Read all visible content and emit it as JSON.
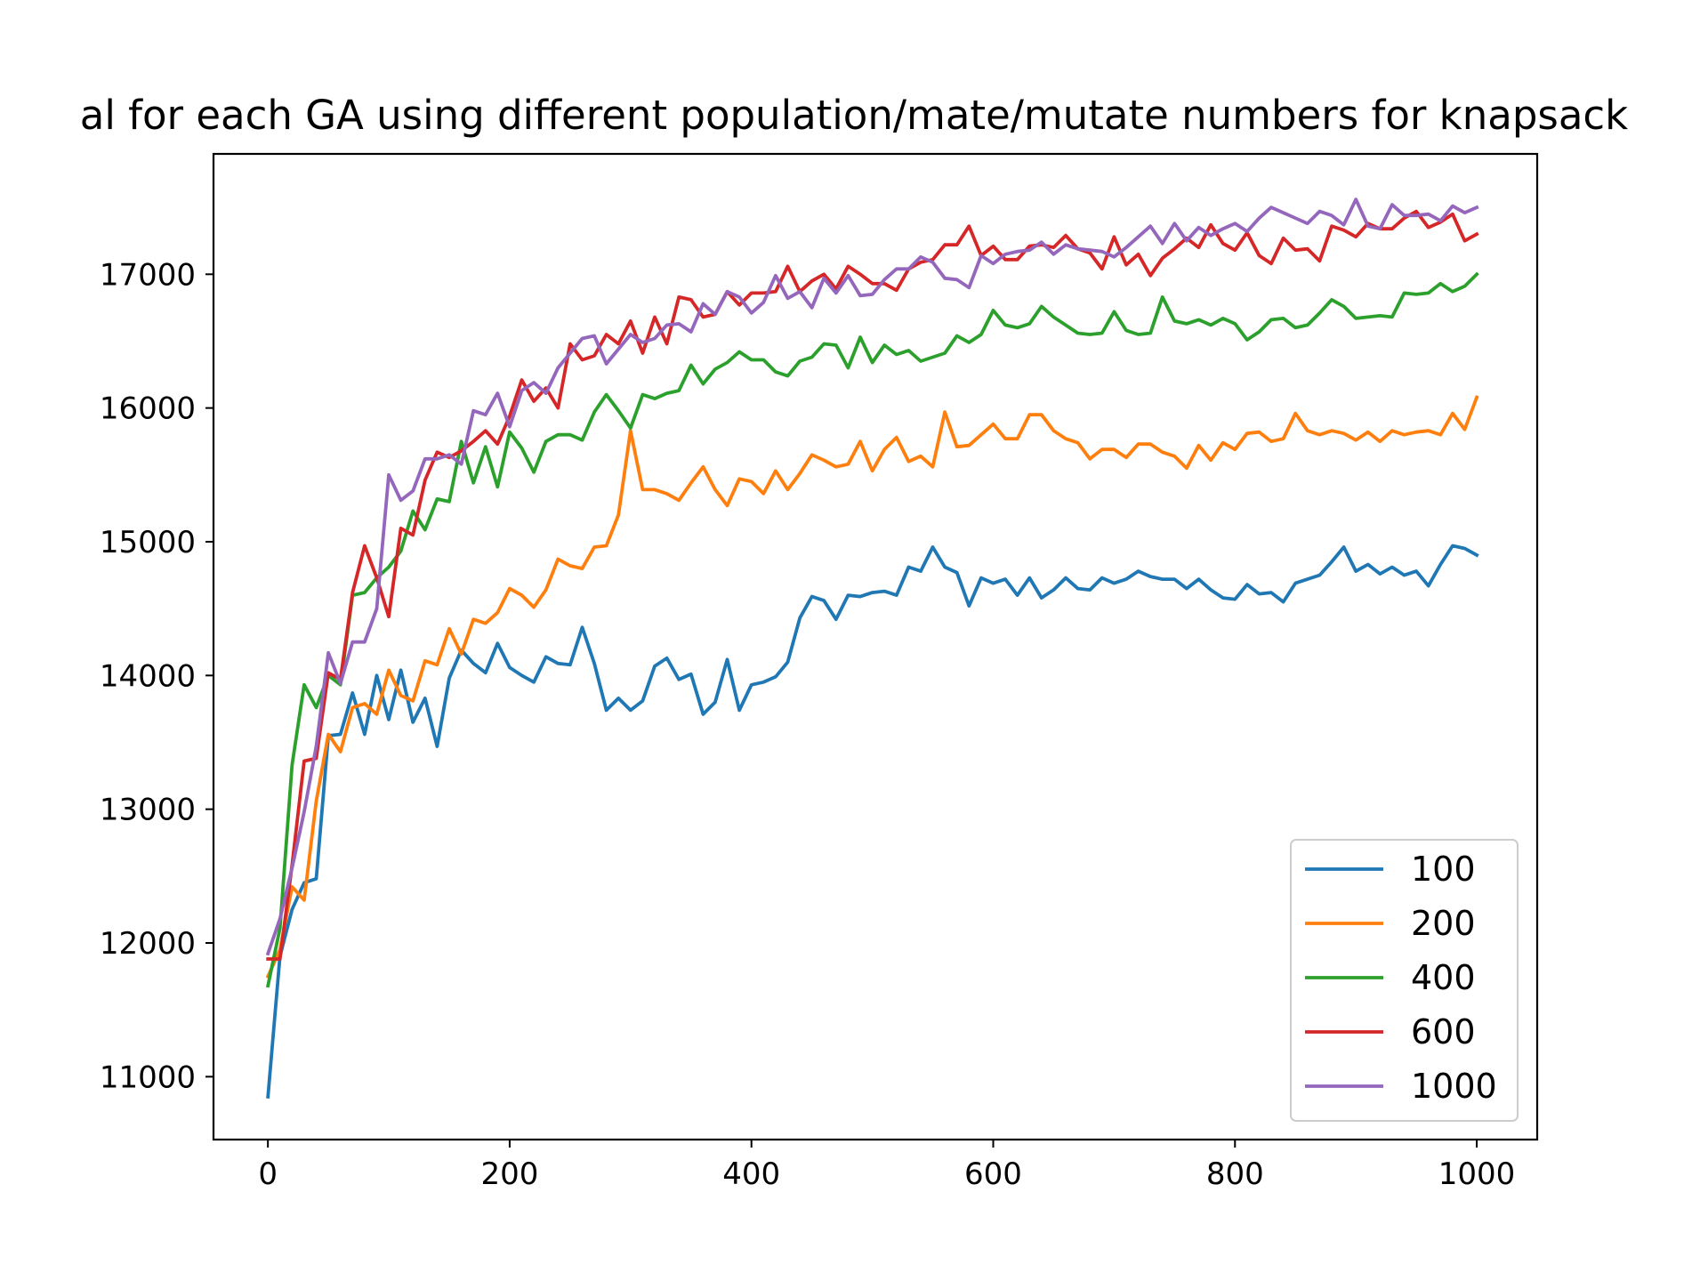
{
  "chart_data": {
    "type": "line",
    "title": "al for each GA using different population/mate/mutate numbers for knapsack",
    "xlabel": "",
    "ylabel": "",
    "xlim": [
      -45,
      1050
    ],
    "ylim": [
      10530,
      17900
    ],
    "xticks": [
      0,
      200,
      400,
      600,
      800,
      1000
    ],
    "yticks": [
      11000,
      12000,
      13000,
      14000,
      15000,
      16000,
      17000
    ],
    "grid": false,
    "legend_position": "lower-right",
    "x": [
      0,
      10,
      20,
      30,
      40,
      50,
      60,
      70,
      80,
      90,
      100,
      110,
      120,
      130,
      140,
      150,
      160,
      170,
      180,
      190,
      200,
      210,
      220,
      230,
      240,
      250,
      260,
      270,
      280,
      290,
      300,
      310,
      320,
      330,
      340,
      350,
      360,
      370,
      380,
      390,
      400,
      410,
      420,
      430,
      440,
      450,
      460,
      470,
      480,
      490,
      500,
      510,
      520,
      530,
      540,
      550,
      560,
      570,
      580,
      590,
      600,
      610,
      620,
      630,
      640,
      650,
      660,
      670,
      680,
      690,
      700,
      710,
      720,
      730,
      740,
      750,
      760,
      770,
      780,
      790,
      800,
      810,
      820,
      830,
      840,
      850,
      860,
      870,
      880,
      890,
      900,
      910,
      920,
      930,
      940,
      950,
      960,
      970,
      980,
      990,
      1000
    ],
    "series": [
      {
        "name": "100",
        "color": "#1f77b4",
        "values": [
          10850,
          11900,
          12250,
          12450,
          12480,
          13550,
          13560,
          13870,
          13560,
          14000,
          13670,
          14040,
          13650,
          13830,
          13470,
          13980,
          14190,
          14090,
          14020,
          14240,
          14060,
          14000,
          13950,
          14140,
          14090,
          14080,
          14360,
          14090,
          13740,
          13830,
          13740,
          13810,
          14070,
          14130,
          13970,
          14010,
          13710,
          13800,
          14120,
          13740,
          13930,
          13950,
          13990,
          14100,
          14430,
          14590,
          14560,
          14420,
          14600,
          14590,
          14620,
          14630,
          14600,
          14810,
          14780,
          14960,
          14810,
          14770,
          14520,
          14730,
          14690,
          14720,
          14600,
          14730,
          14580,
          14640,
          14730,
          14650,
          14640,
          14730,
          14690,
          14720,
          14780,
          14740,
          14720,
          14720,
          14650,
          14720,
          14640,
          14580,
          14570,
          14680,
          14610,
          14620,
          14550,
          14690,
          14720,
          14750,
          14850,
          14960,
          14780,
          14830,
          14760,
          14810,
          14750,
          14780,
          14670,
          14830,
          14970,
          14950,
          14900
        ]
      },
      {
        "name": "200",
        "color": "#ff7f0e",
        "values": [
          11750,
          11950,
          12420,
          12320,
          13060,
          13560,
          13430,
          13760,
          13790,
          13710,
          14040,
          13850,
          13810,
          14110,
          14080,
          14350,
          14160,
          14420,
          14390,
          14470,
          14650,
          14600,
          14510,
          14640,
          14870,
          14820,
          14800,
          14960,
          14970,
          15200,
          15830,
          15390,
          15390,
          15360,
          15310,
          15440,
          15560,
          15390,
          15270,
          15470,
          15450,
          15360,
          15530,
          15390,
          15510,
          15650,
          15610,
          15560,
          15580,
          15750,
          15530,
          15690,
          15780,
          15600,
          15640,
          15560,
          15970,
          15710,
          15720,
          15800,
          15880,
          15770,
          15770,
          15950,
          15950,
          15830,
          15770,
          15740,
          15620,
          15690,
          15690,
          15630,
          15730,
          15730,
          15670,
          15640,
          15550,
          15720,
          15610,
          15740,
          15690,
          15810,
          15820,
          15750,
          15770,
          15960,
          15830,
          15800,
          15830,
          15810,
          15760,
          15820,
          15750,
          15830,
          15800,
          15820,
          15830,
          15800,
          15960,
          15840,
          16080
        ]
      },
      {
        "name": "400",
        "color": "#2ca02c",
        "values": [
          11680,
          12110,
          13330,
          13930,
          13760,
          14000,
          13930,
          14600,
          14620,
          14730,
          14810,
          14930,
          15230,
          15090,
          15320,
          15300,
          15750,
          15440,
          15710,
          15410,
          15820,
          15700,
          15520,
          15750,
          15800,
          15800,
          15760,
          15970,
          16100,
          15980,
          15850,
          16100,
          16070,
          16110,
          16130,
          16320,
          16180,
          16290,
          16340,
          16420,
          16360,
          16360,
          16270,
          16240,
          16350,
          16380,
          16480,
          16470,
          16300,
          16530,
          16340,
          16470,
          16400,
          16430,
          16350,
          16380,
          16410,
          16540,
          16490,
          16550,
          16730,
          16620,
          16600,
          16630,
          16760,
          16680,
          16620,
          16560,
          16550,
          16560,
          16720,
          16580,
          16550,
          16560,
          16830,
          16650,
          16630,
          16660,
          16620,
          16670,
          16630,
          16510,
          16570,
          16660,
          16670,
          16600,
          16620,
          16710,
          16810,
          16760,
          16670,
          16680,
          16690,
          16680,
          16860,
          16850,
          16860,
          16930,
          16870,
          16910,
          17000
        ]
      },
      {
        "name": "600",
        "color": "#d62728",
        "values": [
          11880,
          11880,
          12580,
          13360,
          13380,
          14020,
          13970,
          14620,
          14970,
          14730,
          14440,
          15100,
          15050,
          15460,
          15670,
          15630,
          15680,
          15750,
          15830,
          15730,
          15940,
          16210,
          16050,
          16150,
          16000,
          16480,
          16360,
          16390,
          16550,
          16480,
          16650,
          16410,
          16680,
          16480,
          16830,
          16810,
          16680,
          16700,
          16870,
          16770,
          16860,
          16860,
          16870,
          17060,
          16870,
          16950,
          17000,
          16890,
          17060,
          17000,
          16930,
          16930,
          16880,
          17040,
          17090,
          17110,
          17220,
          17220,
          17360,
          17140,
          17210,
          17110,
          17110,
          17210,
          17220,
          17200,
          17290,
          17190,
          17160,
          17040,
          17280,
          17070,
          17150,
          16990,
          17120,
          17190,
          17270,
          17200,
          17370,
          17230,
          17180,
          17310,
          17140,
          17080,
          17270,
          17180,
          17190,
          17100,
          17360,
          17330,
          17280,
          17380,
          17340,
          17340,
          17420,
          17470,
          17350,
          17390,
          17450,
          17250,
          17300
        ]
      },
      {
        "name": "1000",
        "color": "#9467bd",
        "values": [
          11920,
          12180,
          12560,
          12980,
          13470,
          14170,
          13940,
          14250,
          14250,
          14500,
          15500,
          15310,
          15380,
          15620,
          15620,
          15650,
          15580,
          15980,
          15950,
          16110,
          15860,
          16130,
          16190,
          16110,
          16300,
          16410,
          16520,
          16540,
          16330,
          16440,
          16550,
          16490,
          16520,
          16620,
          16630,
          16570,
          16780,
          16700,
          16870,
          16830,
          16710,
          16790,
          16990,
          16820,
          16870,
          16750,
          16970,
          16860,
          16990,
          16840,
          16850,
          16960,
          17040,
          17040,
          17130,
          17090,
          16970,
          16960,
          16900,
          17140,
          17080,
          17150,
          17170,
          17180,
          17240,
          17150,
          17220,
          17190,
          17180,
          17170,
          17130,
          17200,
          17280,
          17360,
          17230,
          17380,
          17250,
          17350,
          17290,
          17340,
          17380,
          17320,
          17420,
          17500,
          17460,
          17420,
          17380,
          17470,
          17440,
          17370,
          17560,
          17360,
          17340,
          17520,
          17440,
          17440,
          17450,
          17400,
          17510,
          17460,
          17500
        ]
      }
    ]
  }
}
